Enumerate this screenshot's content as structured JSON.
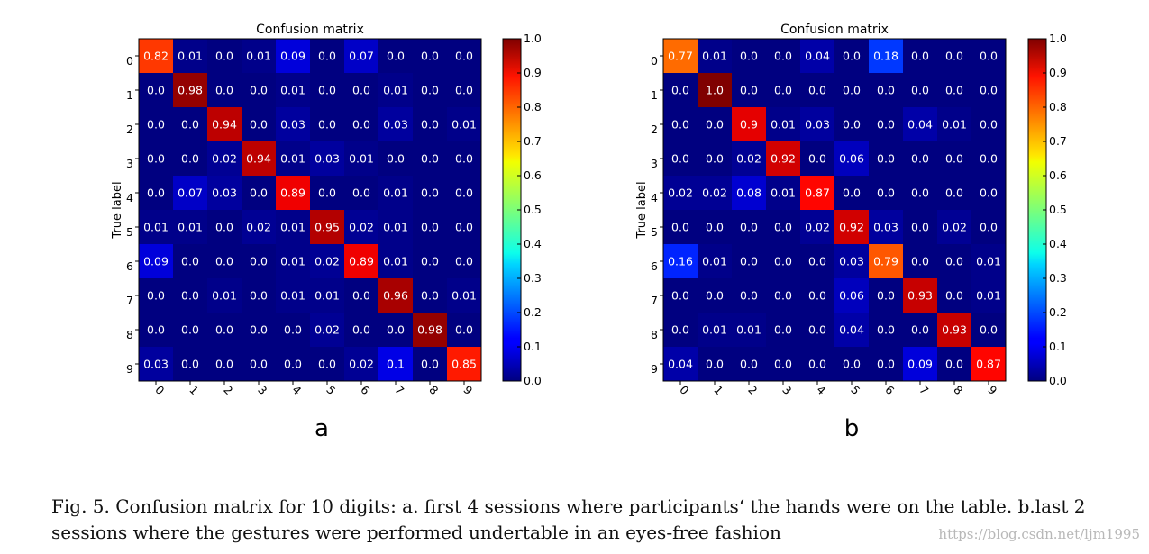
{
  "chart_data": [
    {
      "type": "heatmap",
      "title": "Confusion matrix",
      "ylabel": "True label",
      "xlabel": "",
      "x_categories": [
        "0",
        "1",
        "2",
        "3",
        "4",
        "5",
        "6",
        "7",
        "8",
        "9"
      ],
      "y_categories": [
        "0",
        "1",
        "2",
        "3",
        "4",
        "5",
        "6",
        "7",
        "8",
        "9"
      ],
      "panel_label": "a",
      "colorscale": "jet",
      "colorbar_ticks": [
        "0.0",
        "0.1",
        "0.2",
        "0.3",
        "0.4",
        "0.5",
        "0.6",
        "0.7",
        "0.8",
        "0.9",
        "1.0"
      ],
      "vrange": [
        0,
        1
      ],
      "grid": false,
      "values": [
        [
          "0.82",
          "0.01",
          "0.0",
          "0.01",
          "0.09",
          "0.0",
          "0.07",
          "0.0",
          "0.0",
          "0.0"
        ],
        [
          "0.0",
          "0.98",
          "0.0",
          "0.0",
          "0.01",
          "0.0",
          "0.0",
          "0.01",
          "0.0",
          "0.0"
        ],
        [
          "0.0",
          "0.0",
          "0.94",
          "0.0",
          "0.03",
          "0.0",
          "0.0",
          "0.03",
          "0.0",
          "0.01"
        ],
        [
          "0.0",
          "0.0",
          "0.02",
          "0.94",
          "0.01",
          "0.03",
          "0.01",
          "0.0",
          "0.0",
          "0.0"
        ],
        [
          "0.0",
          "0.07",
          "0.03",
          "0.0",
          "0.89",
          "0.0",
          "0.0",
          "0.01",
          "0.0",
          "0.0"
        ],
        [
          "0.01",
          "0.01",
          "0.0",
          "0.02",
          "0.01",
          "0.95",
          "0.02",
          "0.01",
          "0.0",
          "0.0"
        ],
        [
          "0.09",
          "0.0",
          "0.0",
          "0.0",
          "0.01",
          "0.02",
          "0.89",
          "0.01",
          "0.0",
          "0.0"
        ],
        [
          "0.0",
          "0.0",
          "0.01",
          "0.0",
          "0.01",
          "0.01",
          "0.0",
          "0.96",
          "0.0",
          "0.01"
        ],
        [
          "0.0",
          "0.0",
          "0.0",
          "0.0",
          "0.0",
          "0.02",
          "0.0",
          "0.0",
          "0.98",
          "0.0"
        ],
        [
          "0.03",
          "0.0",
          "0.0",
          "0.0",
          "0.0",
          "0.0",
          "0.02",
          "0.1",
          "0.0",
          "0.85"
        ]
      ]
    },
    {
      "type": "heatmap",
      "title": "Confusion matrix",
      "ylabel": "True label",
      "xlabel": "",
      "x_categories": [
        "0",
        "1",
        "2",
        "3",
        "4",
        "5",
        "6",
        "7",
        "8",
        "9"
      ],
      "y_categories": [
        "0",
        "1",
        "2",
        "3",
        "4",
        "5",
        "6",
        "7",
        "8",
        "9"
      ],
      "panel_label": "b",
      "colorscale": "jet",
      "colorbar_ticks": [
        "0.0",
        "0.1",
        "0.2",
        "0.3",
        "0.4",
        "0.5",
        "0.6",
        "0.7",
        "0.8",
        "0.9",
        "1.0"
      ],
      "vrange": [
        0,
        1
      ],
      "grid": false,
      "values": [
        [
          "0.77",
          "0.01",
          "0.0",
          "0.0",
          "0.04",
          "0.0",
          "0.18",
          "0.0",
          "0.0",
          "0.0"
        ],
        [
          "0.0",
          "1.0",
          "0.0",
          "0.0",
          "0.0",
          "0.0",
          "0.0",
          "0.0",
          "0.0",
          "0.0"
        ],
        [
          "0.0",
          "0.0",
          "0.9",
          "0.01",
          "0.03",
          "0.0",
          "0.0",
          "0.04",
          "0.01",
          "0.0"
        ],
        [
          "0.0",
          "0.0",
          "0.02",
          "0.92",
          "0.0",
          "0.06",
          "0.0",
          "0.0",
          "0.0",
          "0.0"
        ],
        [
          "0.02",
          "0.02",
          "0.08",
          "0.01",
          "0.87",
          "0.0",
          "0.0",
          "0.0",
          "0.0",
          "0.0"
        ],
        [
          "0.0",
          "0.0",
          "0.0",
          "0.0",
          "0.02",
          "0.92",
          "0.03",
          "0.0",
          "0.02",
          "0.0"
        ],
        [
          "0.16",
          "0.01",
          "0.0",
          "0.0",
          "0.0",
          "0.03",
          "0.79",
          "0.0",
          "0.0",
          "0.01"
        ],
        [
          "0.0",
          "0.0",
          "0.0",
          "0.0",
          "0.0",
          "0.06",
          "0.0",
          "0.93",
          "0.0",
          "0.01"
        ],
        [
          "0.0",
          "0.01",
          "0.01",
          "0.0",
          "0.0",
          "0.04",
          "0.0",
          "0.0",
          "0.93",
          "0.0"
        ],
        [
          "0.04",
          "0.0",
          "0.0",
          "0.0",
          "0.0",
          "0.0",
          "0.0",
          "0.09",
          "0.0",
          "0.87"
        ]
      ]
    }
  ],
  "caption": "Fig. 5.  Confusion matrix for 10 digits: a. first 4 sessions where participants‘ the hands were on the table. b.last 2 sessions where the gestures were performed undertable in an eyes-free fashion",
  "watermark": "https://blog.csdn.net/ljm1995"
}
